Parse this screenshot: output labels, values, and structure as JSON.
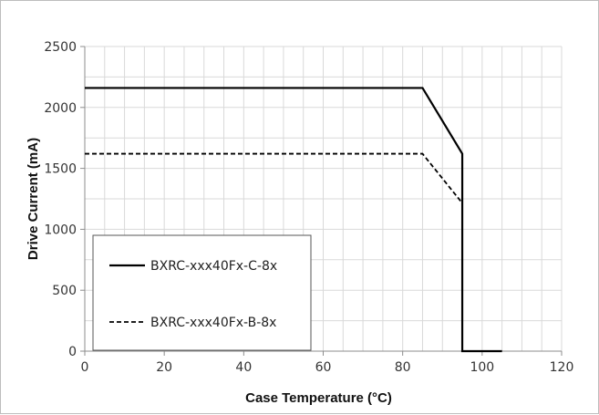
{
  "chart_data": {
    "type": "line",
    "title": "",
    "xlabel": "Case Temperature (°C)",
    "ylabel": "Drive Current (mA)",
    "xlim": [
      0,
      120
    ],
    "ylim": [
      0,
      2500
    ],
    "xticks": [
      0,
      20,
      40,
      60,
      80,
      100,
      120
    ],
    "yticks": [
      0,
      500,
      1000,
      1500,
      2000,
      2500
    ],
    "grid": true,
    "legend_position": "bottom-left",
    "series": [
      {
        "name": "BXRC-xxx40Fx-C-8x",
        "style": "solid",
        "color": "#000000",
        "x": [
          0,
          85,
          95,
          95,
          105
        ],
        "y": [
          2160,
          2160,
          1620,
          0,
          0
        ]
      },
      {
        "name": "BXRC-xxx40Fx-B-8x",
        "style": "dashed",
        "color": "#000000",
        "x": [
          0,
          85,
          95
        ],
        "y": [
          1620,
          1620,
          1215
        ]
      }
    ]
  }
}
